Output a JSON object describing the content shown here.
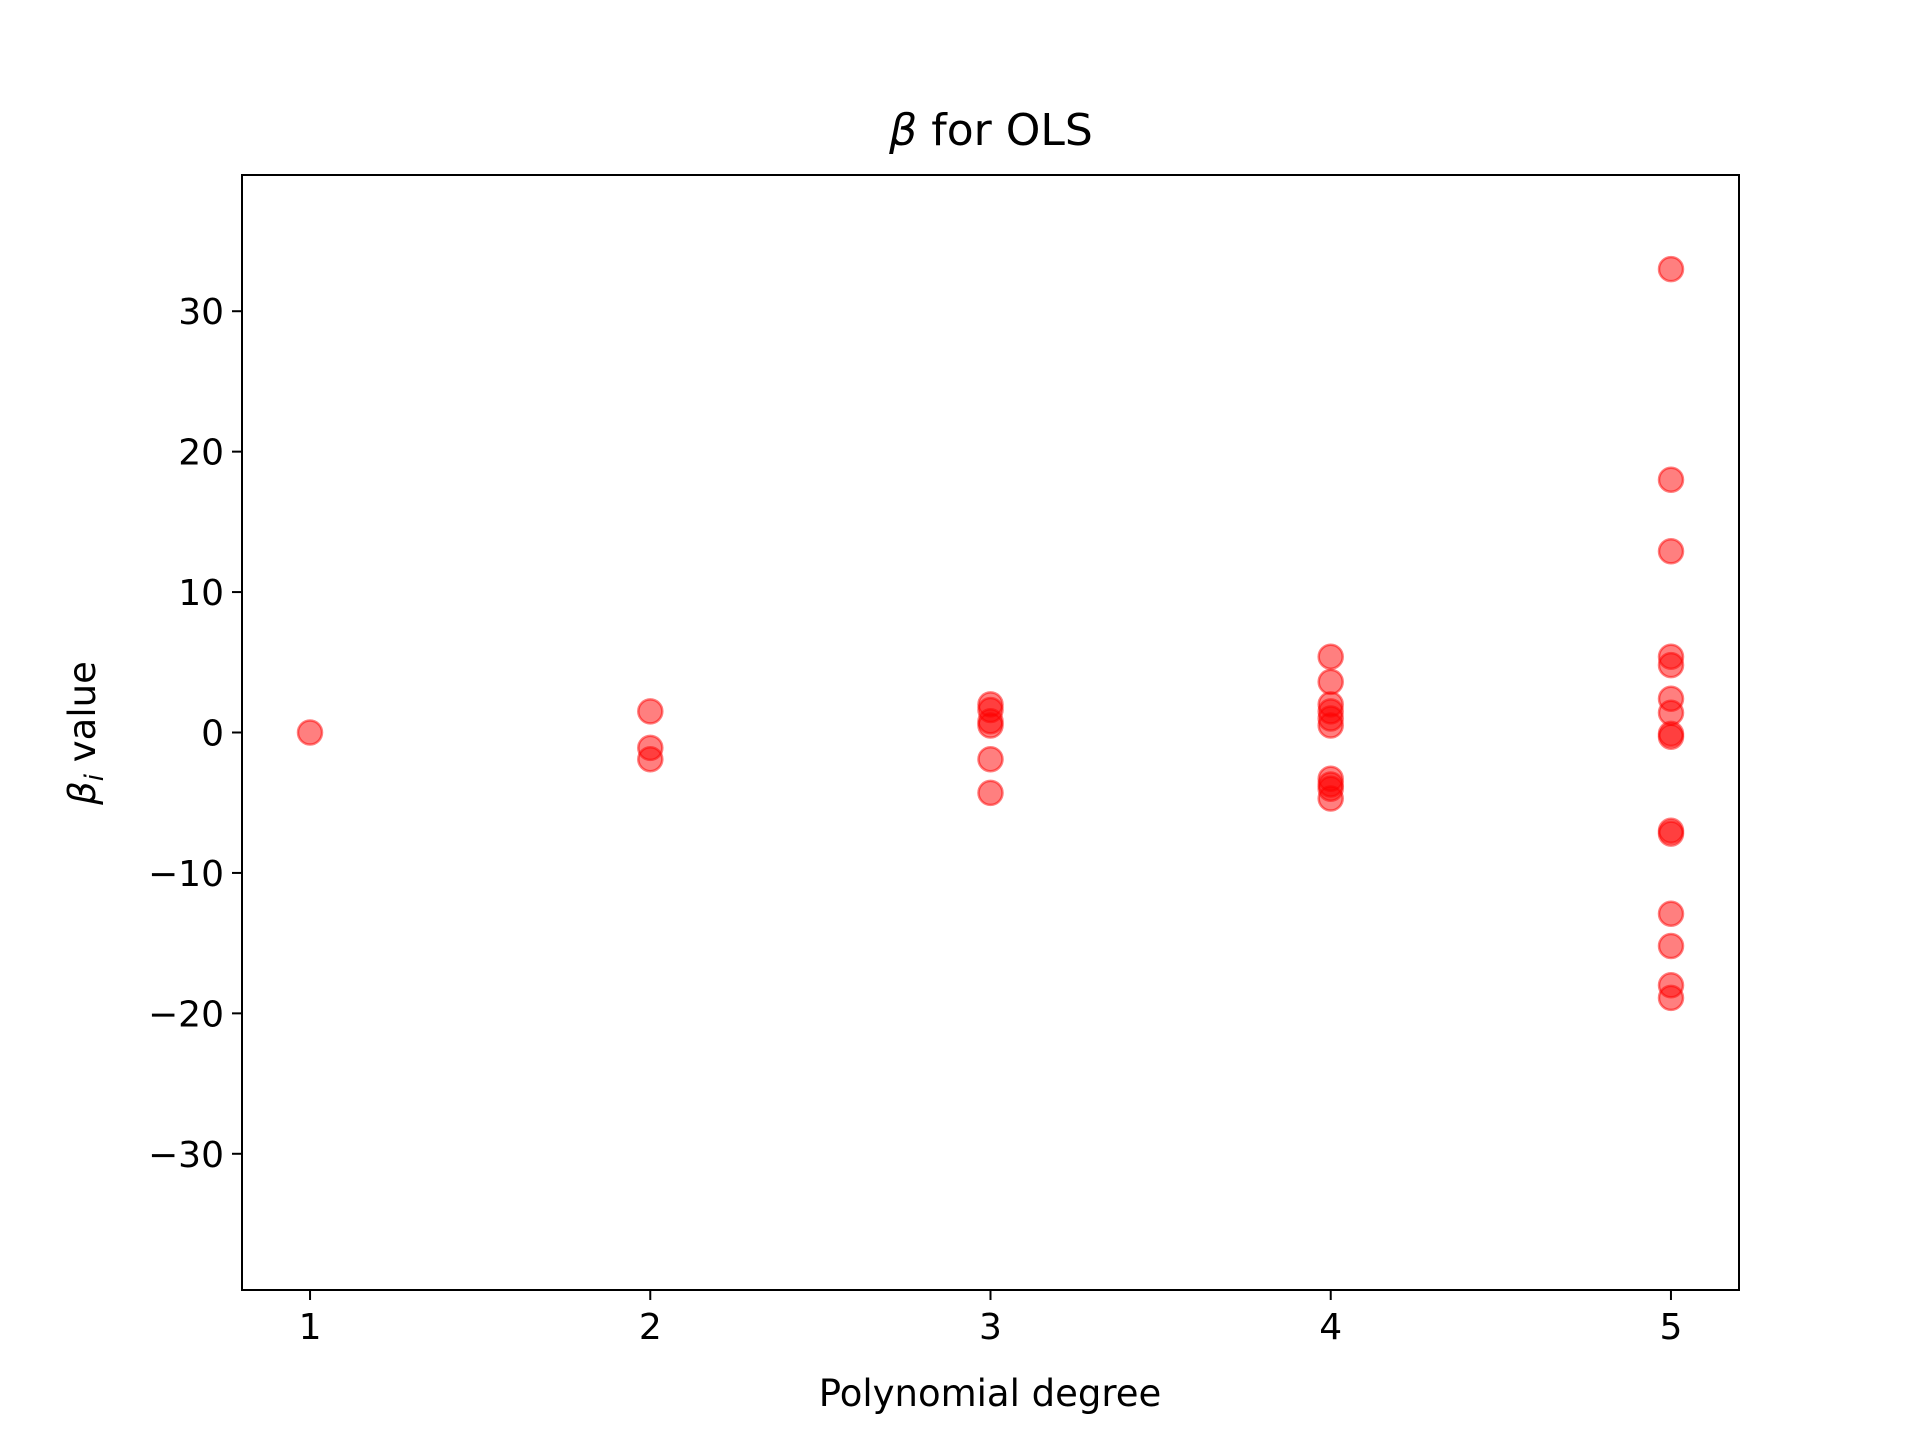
{
  "chart_data": {
    "type": "scatter",
    "title_symbol": "β",
    "title_text": " for OLS",
    "xlabel": "Polynomial degree",
    "ylabel_symbol": "β",
    "ylabel_subscript": "i",
    "ylabel_text": " value",
    "xlim": [
      0.8,
      5.2
    ],
    "ylim": [
      -39.7,
      39.7
    ],
    "x_ticks": [
      1,
      2,
      3,
      4,
      5
    ],
    "x_tick_labels": [
      "1",
      "2",
      "3",
      "4",
      "5"
    ],
    "y_ticks": [
      -30,
      -20,
      -10,
      0,
      10,
      20,
      30
    ],
    "y_tick_labels": [
      "−30",
      "−20",
      "−10",
      "0",
      "10",
      "20",
      "30"
    ],
    "grid": false,
    "marker_color": "#ff0000",
    "marker_alpha": 0.5,
    "points": [
      {
        "x": 1,
        "y": 0.0
      },
      {
        "x": 2,
        "y": 1.5
      },
      {
        "x": 2,
        "y": -1.1
      },
      {
        "x": 2,
        "y": -1.9
      },
      {
        "x": 3,
        "y": 2.0
      },
      {
        "x": 3,
        "y": 1.6
      },
      {
        "x": 3,
        "y": 0.8
      },
      {
        "x": 3,
        "y": 0.5
      },
      {
        "x": 3,
        "y": -1.9
      },
      {
        "x": 3,
        "y": -4.3
      },
      {
        "x": 4,
        "y": 5.4
      },
      {
        "x": 4,
        "y": 3.6
      },
      {
        "x": 4,
        "y": 2.0
      },
      {
        "x": 4,
        "y": 1.5
      },
      {
        "x": 4,
        "y": 1.0
      },
      {
        "x": 4,
        "y": 0.5
      },
      {
        "x": 4,
        "y": -3.3
      },
      {
        "x": 4,
        "y": -3.7
      },
      {
        "x": 4,
        "y": -4.0
      },
      {
        "x": 4,
        "y": -4.7
      },
      {
        "x": 5,
        "y": 33.0
      },
      {
        "x": 5,
        "y": 18.0
      },
      {
        "x": 5,
        "y": 12.9
      },
      {
        "x": 5,
        "y": 5.4
      },
      {
        "x": 5,
        "y": 4.8
      },
      {
        "x": 5,
        "y": 2.4
      },
      {
        "x": 5,
        "y": 1.4
      },
      {
        "x": 5,
        "y": -0.1
      },
      {
        "x": 5,
        "y": -0.3
      },
      {
        "x": 5,
        "y": -7.0
      },
      {
        "x": 5,
        "y": -7.2
      },
      {
        "x": 5,
        "y": -12.9
      },
      {
        "x": 5,
        "y": -15.2
      },
      {
        "x": 5,
        "y": -18.0
      },
      {
        "x": 5,
        "y": -18.9
      }
    ]
  }
}
